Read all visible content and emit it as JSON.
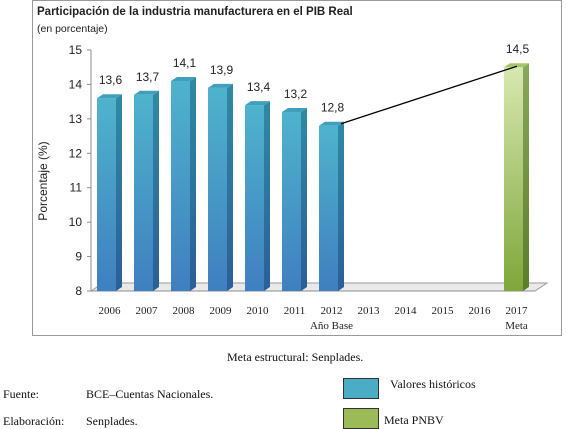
{
  "chart_data": {
    "type": "bar",
    "title": "Participación de la industria manufacturera en el PIB Real",
    "subtitle": "(en porcentaje)",
    "ylabel": "Porcentaje (%)",
    "ylim": [
      8,
      15
    ],
    "yticks": [
      8,
      9,
      10,
      11,
      12,
      13,
      14,
      15
    ],
    "categories": [
      "2006",
      "2007",
      "2008",
      "2009",
      "2010",
      "2011",
      "2012",
      "2013",
      "2014",
      "2015",
      "2016",
      "2017"
    ],
    "category_sublabels": {
      "2012": "Año Base",
      "2017": "Meta"
    },
    "series": [
      {
        "name": "Valores históricos",
        "color": "#4bacc6",
        "values": [
          13.6,
          13.7,
          14.1,
          13.9,
          13.4,
          13.2,
          12.8,
          null,
          null,
          null,
          null,
          null
        ],
        "labels": [
          "13,6",
          "13,7",
          "14,1",
          "13,9",
          "13,4",
          "13,2",
          "12,8",
          "",
          "",
          "",
          "",
          ""
        ]
      },
      {
        "name": "Meta PNBV",
        "color": "#9bbb59",
        "values": [
          null,
          null,
          null,
          null,
          null,
          null,
          null,
          null,
          null,
          null,
          null,
          14.5
        ],
        "labels": [
          "",
          "",
          "",
          "",
          "",
          "",
          "",
          "",
          "",
          "",
          "",
          "14,5"
        ]
      }
    ],
    "trend_line": {
      "from_category": "2012",
      "from_value": 12.8,
      "to_category": "2017",
      "to_value": 14.5
    },
    "grid": false
  },
  "source_note": "Meta estructural: Senplades.",
  "footer": {
    "fuente_label": "Fuente:",
    "fuente_value": "BCE–Cuentas Nacionales.",
    "elaboracion_label": "Elaboración:",
    "elaboracion_value": "Senplades."
  },
  "legend": [
    {
      "label": "Valores históricos",
      "color": "#4bacc6"
    },
    {
      "label": "Meta PNBV",
      "color": "#9bbb59"
    }
  ]
}
